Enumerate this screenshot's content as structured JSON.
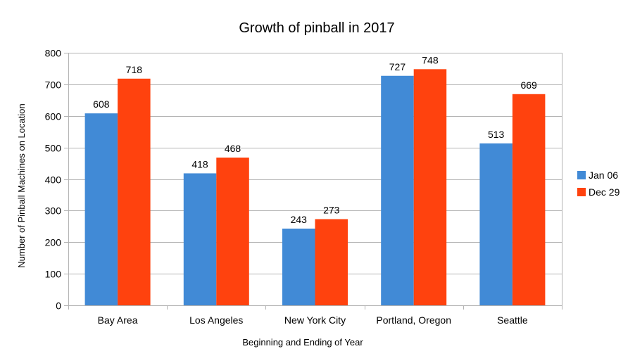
{
  "chart_data": {
    "type": "bar",
    "title": "Growth of pinball in 2017",
    "xlabel": "Beginning and Ending of Year",
    "ylabel": "Number of Pinball Machines on Location",
    "categories": [
      "Bay Area",
      "Los Angeles",
      "New York City",
      "Portland, Oregon",
      "Seattle"
    ],
    "series": [
      {
        "name": "Jan 06",
        "color": "#418ad6",
        "values": [
          608,
          418,
          243,
          727,
          513
        ]
      },
      {
        "name": "Dec 29",
        "color": "#ff420e",
        "values": [
          718,
          468,
          273,
          748,
          669
        ]
      }
    ],
    "ylim": [
      0,
      800
    ],
    "yticks": [
      0,
      100,
      200,
      300,
      400,
      500,
      600,
      700,
      800
    ],
    "grid": true,
    "data_labels": true,
    "legend_position": "right"
  }
}
